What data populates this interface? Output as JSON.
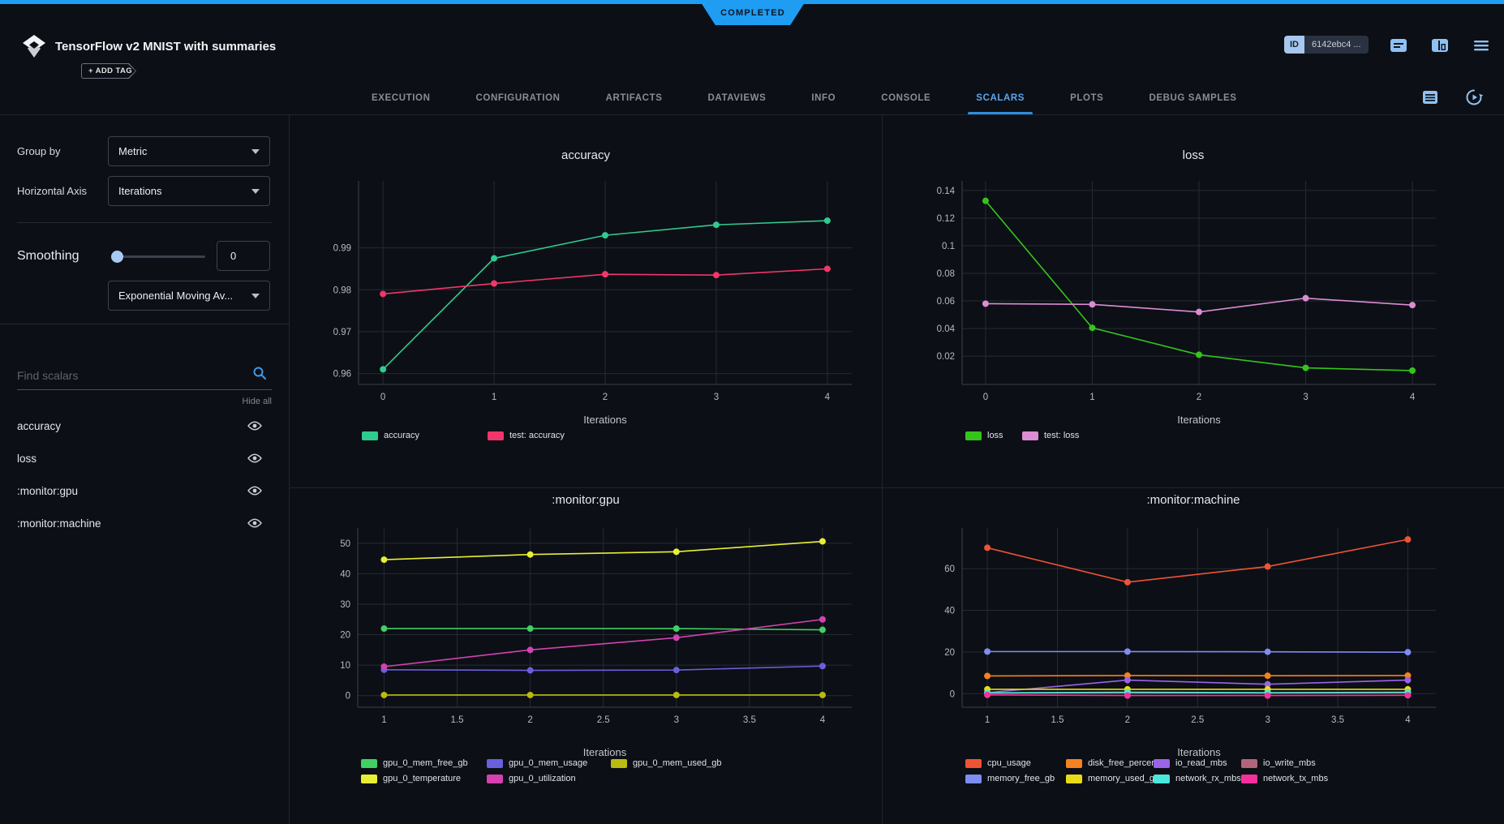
{
  "status_banner": {
    "label": "COMPLETED"
  },
  "header": {
    "title": "TensorFlow v2 MNIST with summaries",
    "add_tag_label": "+ ADD TAG",
    "id_label": "ID",
    "id_value": "6142ebc4 ...",
    "icons": [
      "comment-icon",
      "panels-icon",
      "menu-icon"
    ]
  },
  "tabs": {
    "items": [
      "EXECUTION",
      "CONFIGURATION",
      "ARTIFACTS",
      "DATAVIEWS",
      "INFO",
      "CONSOLE",
      "SCALARS",
      "PLOTS",
      "DEBUG SAMPLES"
    ],
    "active": "SCALARS",
    "tools": [
      "table-view-icon",
      "refresh-icon"
    ]
  },
  "sidebar": {
    "group_by_label": "Group by",
    "group_by_value": "Metric",
    "horizontal_axis_label": "Horizontal Axis",
    "horizontal_axis_value": "Iterations",
    "smoothing_label": "Smoothing",
    "smoothing_value": "0",
    "smoothing_method": "Exponential Moving Av...",
    "find_placeholder": "Find scalars",
    "hide_all_label": "Hide all",
    "scalars": [
      {
        "label": "accuracy",
        "visible": true
      },
      {
        "label": "loss",
        "visible": true
      },
      {
        "label": ":monitor:gpu",
        "visible": true
      },
      {
        "label": ":monitor:machine",
        "visible": true
      }
    ]
  },
  "chart_data": [
    {
      "type": "line",
      "title": "accuracy",
      "xlabel": "Iterations",
      "x": [
        0,
        1,
        2,
        3,
        4
      ],
      "xticks": [
        0,
        1,
        2,
        3,
        4
      ],
      "xtick_labels": [
        "0",
        "1",
        "2",
        "3",
        "4"
      ],
      "yticks": [
        0.96,
        0.97,
        0.98,
        0.99
      ],
      "ytick_labels": [
        "0.96",
        "0.97",
        "0.98",
        "0.99"
      ],
      "xrange": [
        -0.22,
        4.22
      ],
      "yrange": [
        0.9574,
        1.006
      ],
      "grid": true,
      "legend_position": "bottom-left",
      "series": [
        {
          "name": "accuracy",
          "color": "#2fcb8f",
          "values": [
            0.961,
            0.9875,
            0.993,
            0.9955,
            0.9965
          ]
        },
        {
          "name": "test: accuracy",
          "color": "#f2366b",
          "values": [
            0.979,
            0.9815,
            0.9837,
            0.9835,
            0.985
          ]
        }
      ]
    },
    {
      "type": "line",
      "title": "loss",
      "xlabel": "Iterations",
      "x": [
        0,
        1,
        2,
        3,
        4
      ],
      "xticks": [
        0,
        1,
        2,
        3,
        4
      ],
      "xtick_labels": [
        "0",
        "1",
        "2",
        "3",
        "4"
      ],
      "yticks": [
        0.02,
        0.04,
        0.06,
        0.08,
        0.1,
        0.12,
        0.14
      ],
      "ytick_labels": [
        "0.02",
        "0.04",
        "0.06",
        "0.08",
        "0.1",
        "0.12",
        "0.14"
      ],
      "xrange": [
        -0.22,
        4.22
      ],
      "yrange": [
        -0.0005,
        0.147
      ],
      "grid": true,
      "legend_position": "bottom-left",
      "series": [
        {
          "name": "loss",
          "color": "#35c41c",
          "values": [
            0.1325,
            0.0405,
            0.021,
            0.0115,
            0.0095
          ]
        },
        {
          "name": "test: loss",
          "color": "#dc8cd3",
          "values": [
            0.058,
            0.0575,
            0.052,
            0.062,
            0.057
          ]
        }
      ]
    },
    {
      "type": "line",
      "title": ":monitor:gpu",
      "xlabel": "Iterations",
      "x": [
        1,
        2,
        3,
        4
      ],
      "xticks": [
        1,
        1.5,
        2,
        2.5,
        3,
        3.5,
        4
      ],
      "xtick_labels": [
        "1",
        "1.5",
        "2",
        "2.5",
        "3",
        "3.5",
        "4"
      ],
      "yticks": [
        0,
        10,
        20,
        30,
        40,
        50
      ],
      "ytick_labels": [
        "0",
        "10",
        "20",
        "30",
        "40",
        "50"
      ],
      "xrange": [
        0.82,
        4.2
      ],
      "yrange": [
        -3.8,
        55
      ],
      "grid": true,
      "legend_position": "bottom-left",
      "series": [
        {
          "name": "gpu_0_mem_free_gb",
          "color": "#41d064",
          "values": [
            22,
            22,
            22,
            21.6
          ]
        },
        {
          "name": "gpu_0_mem_usage",
          "color": "#6a5fdd",
          "values": [
            8.5,
            8.3,
            8.4,
            9.7
          ]
        },
        {
          "name": "gpu_0_mem_used_gb",
          "color": "#b9bb0e",
          "values": [
            0.2,
            0.2,
            0.2,
            0.2
          ]
        },
        {
          "name": "gpu_0_temperature",
          "color": "#e9ee35",
          "values": [
            44.6,
            46.3,
            47.2,
            50.6
          ]
        },
        {
          "name": "gpu_0_utilization",
          "color": "#d342b0",
          "values": [
            9.5,
            15,
            19,
            25
          ]
        }
      ]
    },
    {
      "type": "line",
      "title": ":monitor:machine",
      "xlabel": "Iterations",
      "x": [
        1,
        2,
        3,
        4
      ],
      "xticks": [
        1,
        1.5,
        2,
        2.5,
        3,
        3.5,
        4
      ],
      "xtick_labels": [
        "1",
        "1.5",
        "2",
        "2.5",
        "3",
        "3.5",
        "4"
      ],
      "yticks": [
        0,
        20,
        40,
        60
      ],
      "ytick_labels": [
        "0",
        "20",
        "40",
        "60"
      ],
      "xrange": [
        0.82,
        4.2
      ],
      "yrange": [
        -6.5,
        79.5
      ],
      "grid": true,
      "legend_position": "bottom-left",
      "series": [
        {
          "name": "cpu_usage",
          "color": "#ef5336",
          "values": [
            70,
            53.5,
            61,
            74
          ]
        },
        {
          "name": "disk_free_percent",
          "color": "#f58220",
          "values": [
            8.5,
            8.7,
            8.6,
            8.7
          ]
        },
        {
          "name": "io_read_mbs",
          "color": "#9a64e8",
          "values": [
            0.5,
            6.5,
            4.5,
            6.5
          ]
        },
        {
          "name": "io_write_mbs",
          "color": "#b26579",
          "values": [
            0.2,
            0.4,
            0.3,
            0.4
          ]
        },
        {
          "name": "memory_free_gb",
          "color": "#7d8df0",
          "values": [
            20.2,
            20.2,
            20.1,
            19.9
          ]
        },
        {
          "name": "memory_used_gb",
          "color": "#e7dc16",
          "values": [
            2.1,
            2.1,
            2.1,
            2.1
          ]
        },
        {
          "name": "network_rx_mbs",
          "color": "#49e8da",
          "values": [
            0.4,
            0.7,
            0.5,
            0.7
          ]
        },
        {
          "name": "network_tx_mbs",
          "color": "#f5309b",
          "values": [
            -0.6,
            -0.9,
            -0.9,
            -0.8
          ]
        }
      ]
    }
  ]
}
